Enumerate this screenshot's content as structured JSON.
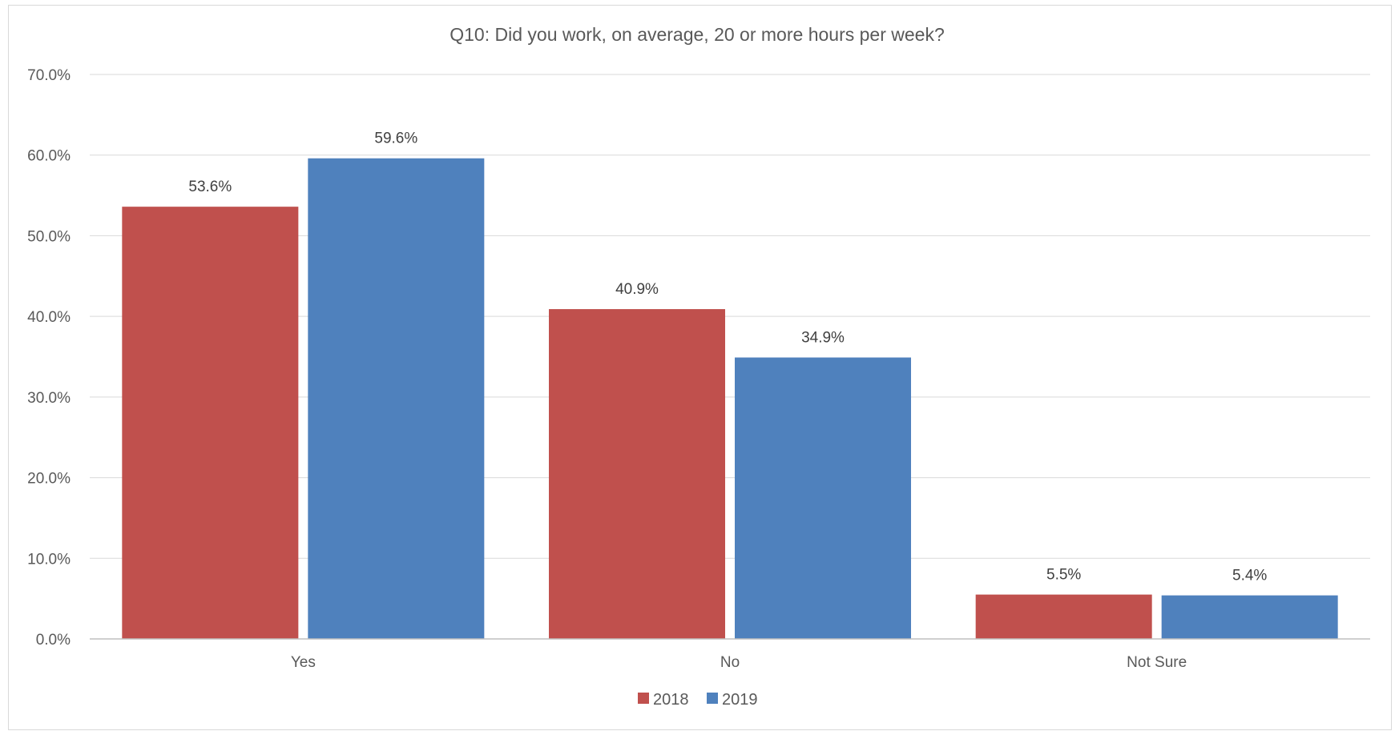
{
  "chart_data": {
    "type": "bar",
    "title": "Q10: Did you work, on average, 20 or more hours per week?",
    "categories": [
      "Yes",
      "No",
      "Not Sure"
    ],
    "series": [
      {
        "name": "2018",
        "values": [
          53.6,
          40.9,
          5.5
        ],
        "labels": [
          "53.6%",
          "40.9%",
          "5.5%"
        ],
        "color": "#c0504d"
      },
      {
        "name": "2019",
        "values": [
          59.6,
          34.9,
          5.4
        ],
        "labels": [
          "59.6%",
          "34.9%",
          "5.4%"
        ],
        "color": "#4f81bd"
      }
    ],
    "ylim": [
      0,
      70
    ],
    "yticks": [
      0,
      10,
      20,
      30,
      40,
      50,
      60,
      70
    ],
    "ytick_labels": [
      "0.0%",
      "10.0%",
      "20.0%",
      "30.0%",
      "40.0%",
      "50.0%",
      "60.0%",
      "70.0%"
    ],
    "grid": true,
    "legend_position": "bottom",
    "gridline_color": "#d9d9d9",
    "axis_color": "#bfbfbf"
  }
}
